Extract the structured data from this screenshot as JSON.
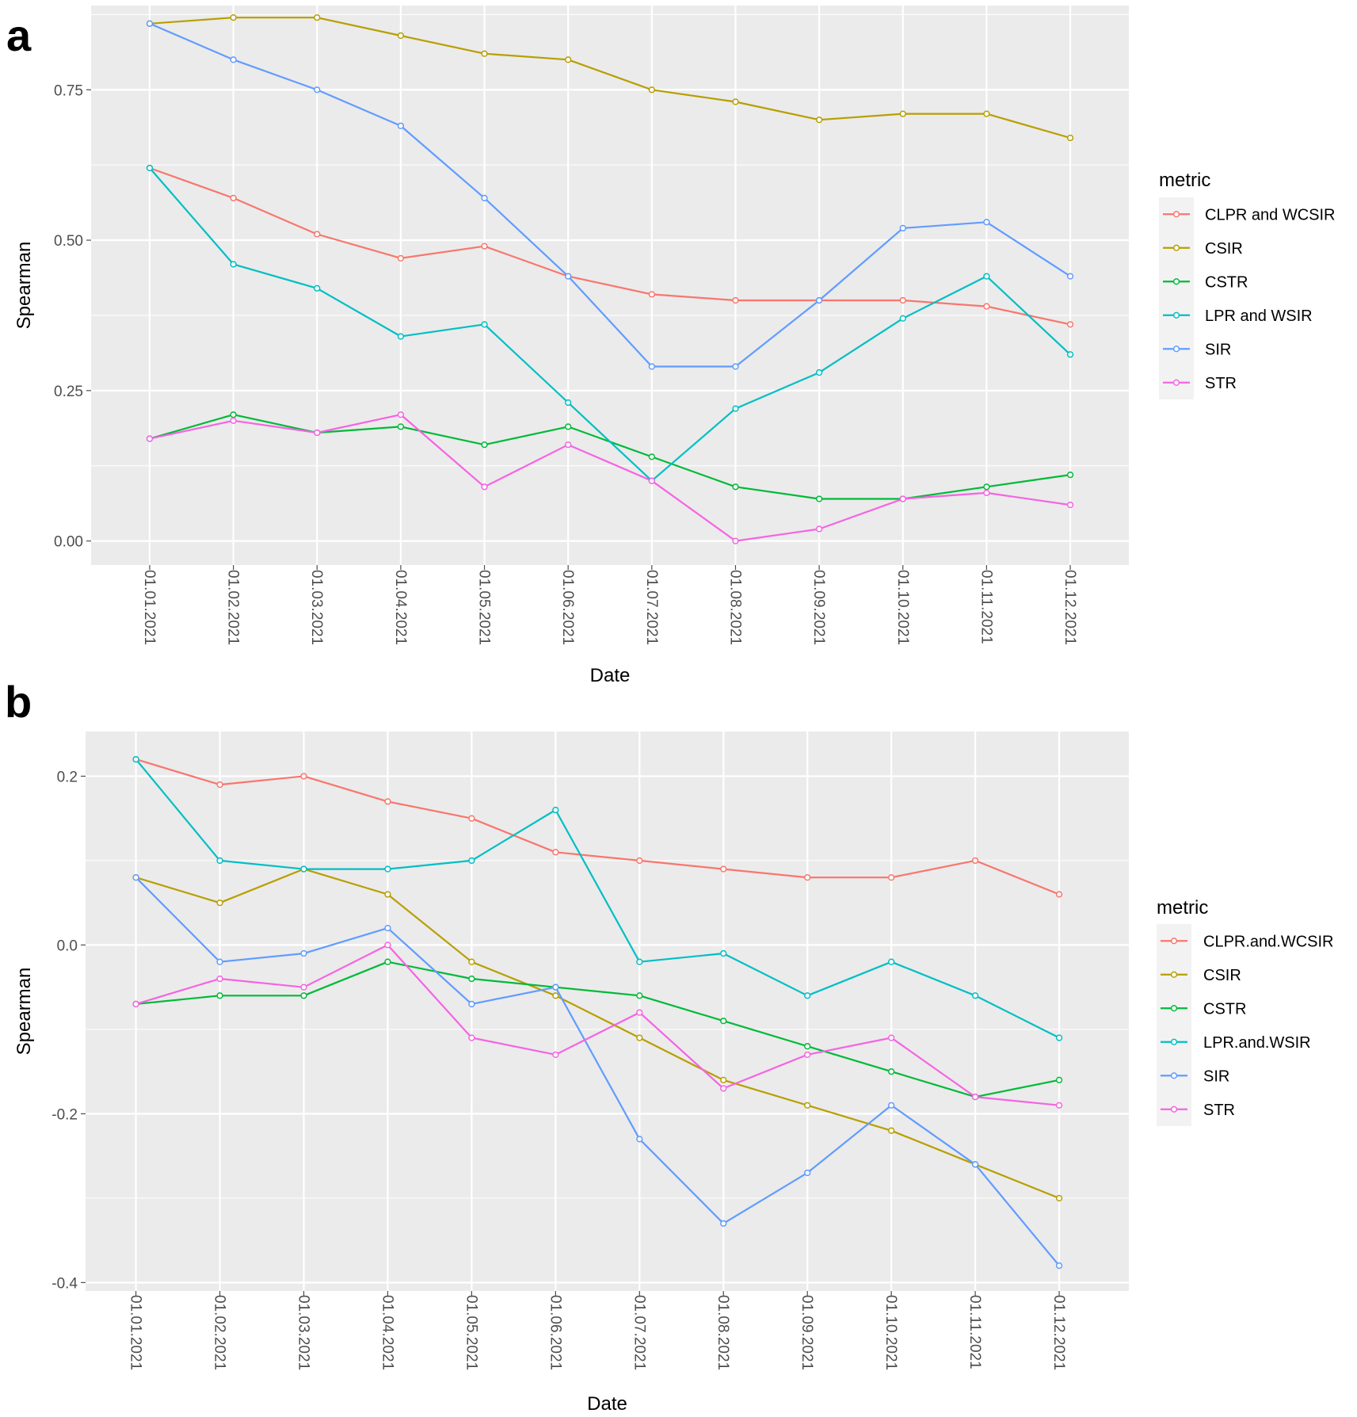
{
  "chart_data": [
    {
      "type": "line",
      "panel_label": "a",
      "xlabel": "Date",
      "ylabel": "Spearman",
      "x": [
        "01.01.2021",
        "01.02.2021",
        "01.03.2021",
        "01.04.2021",
        "01.05.2021",
        "01.06.2021",
        "01.07.2021",
        "01.08.2021",
        "01.09.2021",
        "01.10.2021",
        "01.11.2021",
        "01.12.2021"
      ],
      "ylim": [
        -0.04,
        0.89
      ],
      "yticks": [
        0.0,
        0.25,
        0.5,
        0.75
      ],
      "ytick_labels": [
        "0.00",
        "0.25",
        "0.50",
        "0.75"
      ],
      "grid": true,
      "legend_title": "metric",
      "legend_position": "right",
      "series": [
        {
          "name": "CLPR and WCSIR",
          "color": "#F8766D",
          "values": [
            0.62,
            0.57,
            0.51,
            0.47,
            0.49,
            0.44,
            0.41,
            0.4,
            0.4,
            0.4,
            0.39,
            0.36
          ]
        },
        {
          "name": "CSIR",
          "color": "#B79F00",
          "values": [
            0.86,
            0.87,
            0.87,
            0.84,
            0.81,
            0.8,
            0.75,
            0.73,
            0.7,
            0.71,
            0.71,
            0.67
          ]
        },
        {
          "name": "CSTR",
          "color": "#00BA38",
          "values": [
            0.17,
            0.21,
            0.18,
            0.19,
            0.16,
            0.19,
            0.14,
            0.09,
            0.07,
            0.07,
            0.09,
            0.11
          ]
        },
        {
          "name": "LPR and WSIR",
          "color": "#00BFC4",
          "values": [
            0.62,
            0.46,
            0.42,
            0.34,
            0.36,
            0.23,
            0.1,
            0.22,
            0.28,
            0.37,
            0.44,
            0.31
          ]
        },
        {
          "name": "SIR",
          "color": "#619CFF",
          "values": [
            0.86,
            0.8,
            0.75,
            0.69,
            0.57,
            0.44,
            0.29,
            0.29,
            0.4,
            0.52,
            0.53,
            0.44
          ]
        },
        {
          "name": "STR",
          "color": "#F564E3",
          "values": [
            0.17,
            0.2,
            0.18,
            0.21,
            0.09,
            0.16,
            0.1,
            0.0,
            0.02,
            0.07,
            0.08,
            0.06
          ]
        }
      ]
    },
    {
      "type": "line",
      "panel_label": "b",
      "xlabel": "Date",
      "ylabel": "Spearman",
      "x": [
        "01.01.2021",
        "01.02.2021",
        "01.03.2021",
        "01.04.2021",
        "01.05.2021",
        "01.06.2021",
        "01.07.2021",
        "01.08.2021",
        "01.09.2021",
        "01.10.2021",
        "01.11.2021",
        "01.12.2021"
      ],
      "ylim": [
        -0.41,
        0.253
      ],
      "yticks": [
        -0.4,
        -0.2,
        0.0,
        0.2
      ],
      "ytick_labels": [
        "-0.4",
        "-0.2",
        "0.0",
        "0.2"
      ],
      "grid": true,
      "legend_title": "metric",
      "legend_position": "right",
      "series": [
        {
          "name": "CLPR.and.WCSIR",
          "color": "#F8766D",
          "values": [
            0.22,
            0.19,
            0.2,
            0.17,
            0.15,
            0.11,
            0.1,
            0.09,
            0.08,
            0.08,
            0.1,
            0.06
          ]
        },
        {
          "name": "CSIR",
          "color": "#B79F00",
          "values": [
            0.08,
            0.05,
            0.09,
            0.06,
            -0.02,
            -0.06,
            -0.11,
            -0.16,
            -0.19,
            -0.22,
            -0.26,
            -0.3
          ]
        },
        {
          "name": "CSTR",
          "color": "#00BA38",
          "values": [
            -0.07,
            -0.06,
            -0.06,
            -0.02,
            -0.04,
            -0.05,
            -0.06,
            -0.09,
            -0.12,
            -0.15,
            -0.18,
            -0.16
          ]
        },
        {
          "name": "LPR.and.WSIR",
          "color": "#00BFC4",
          "values": [
            0.22,
            0.1,
            0.09,
            0.09,
            0.1,
            0.16,
            -0.02,
            -0.01,
            -0.06,
            -0.02,
            -0.06,
            -0.11
          ]
        },
        {
          "name": "SIR",
          "color": "#619CFF",
          "values": [
            0.08,
            -0.02,
            -0.01,
            0.02,
            -0.07,
            -0.05,
            -0.23,
            -0.33,
            -0.27,
            -0.19,
            -0.26,
            -0.38
          ]
        },
        {
          "name": "STR",
          "color": "#F564E3",
          "values": [
            -0.07,
            -0.04,
            -0.05,
            0.0,
            -0.11,
            -0.13,
            -0.08,
            -0.17,
            -0.13,
            -0.11,
            -0.18,
            -0.19
          ]
        }
      ]
    }
  ]
}
